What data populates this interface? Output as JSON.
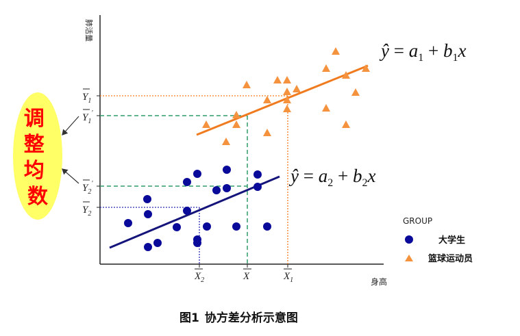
{
  "axes": {
    "y_label": "肺活量",
    "x_label": "身高"
  },
  "side_label": {
    "chars": [
      "调",
      "整",
      "均",
      "数"
    ],
    "fill_color": "#ffff66",
    "text_color": "#ff0000"
  },
  "y_ticks": [
    {
      "id": "Y1",
      "text": "Y",
      "sub": "1",
      "prime": ""
    },
    {
      "id": "Y1p",
      "text": "Y",
      "sub": "1",
      "prime": "'"
    },
    {
      "id": "Y2p",
      "text": "Y",
      "sub": "2",
      "prime": "'"
    },
    {
      "id": "Y2",
      "text": "Y",
      "sub": "2",
      "prime": ""
    }
  ],
  "x_ticks": [
    {
      "id": "X2",
      "text": "X",
      "sub": "2"
    },
    {
      "id": "X",
      "text": "X",
      "sub": ""
    },
    {
      "id": "X1",
      "text": "X",
      "sub": "1"
    }
  ],
  "equations": {
    "eq1": {
      "lhs": "ŷ",
      "rhs_a": "a",
      "sub_a": "1",
      "rhs_b": "b",
      "sub_b": "1",
      "var": "x"
    },
    "eq2": {
      "lhs": "ŷ",
      "rhs_a": "a",
      "sub_a": "2",
      "rhs_b": "b",
      "sub_b": "2",
      "var": "x"
    }
  },
  "legend": {
    "title": "GROUP",
    "items": [
      {
        "label": "大学生",
        "marker": "circle",
        "color": "#0a0a9a"
      },
      {
        "label": "篮球运动员",
        "marker": "triangle",
        "color": "#f5923e"
      }
    ]
  },
  "caption": {
    "prefix": "图",
    "number": "1",
    "text": "协方差分析示意图"
  },
  "colors": {
    "students": "#0a0a9a",
    "athletes": "#f5923e",
    "line_students": "#14147a",
    "line_athletes": "#f07a1e",
    "guide_orange": "#f07a1e",
    "guide_green": "#2e9c6a",
    "guide_blue": "#2828b0"
  }
}
